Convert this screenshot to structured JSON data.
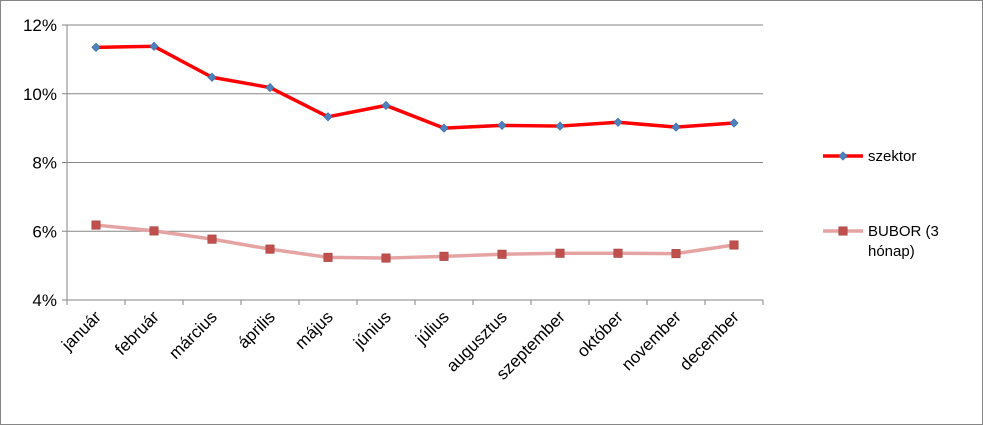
{
  "chart_data": {
    "type": "line",
    "title": "",
    "xlabel": "",
    "ylabel": "",
    "categories": [
      "január",
      "február",
      "március",
      "április",
      "május",
      "június",
      "július",
      "augusztus",
      "szeptember",
      "október",
      "november",
      "december"
    ],
    "ylim": [
      4,
      12
    ],
    "y_ticks": [
      4,
      6,
      8,
      10,
      12
    ],
    "y_tick_labels": [
      "4%",
      "6%",
      "8%",
      "10%",
      "12%"
    ],
    "grid": "horizontal",
    "legend_position": "right",
    "series": [
      {
        "name": "szektor",
        "color": "#ff0000",
        "marker": "diamond",
        "marker_color": "#4f81bd",
        "values": [
          11.35,
          11.38,
          10.48,
          10.18,
          9.33,
          9.66,
          9.0,
          9.08,
          9.06,
          9.17,
          9.03,
          9.15
        ]
      },
      {
        "name": "BUBOR (3 hónap)",
        "legend_lines": [
          "BUBOR (3",
          "hónap)"
        ],
        "color": "#e6a3a3",
        "marker": "square",
        "marker_color": "#c0504d",
        "values": [
          6.18,
          6.01,
          5.77,
          5.48,
          5.24,
          5.22,
          5.27,
          5.33,
          5.36,
          5.36,
          5.35,
          5.6
        ]
      }
    ]
  }
}
